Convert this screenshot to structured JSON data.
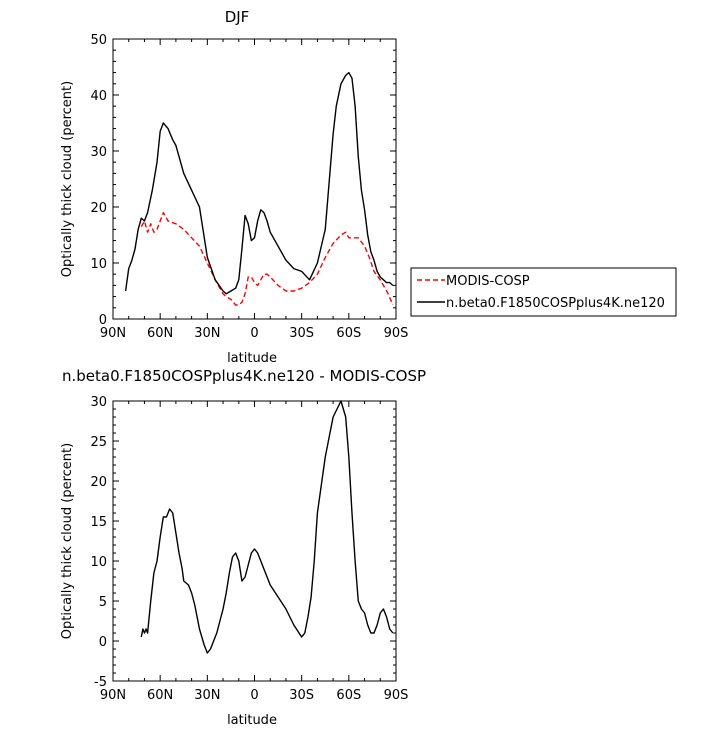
{
  "chart_data": [
    {
      "type": "line",
      "title": "DJF",
      "xlabel": "latitude",
      "ylabel": "Optically thick cloud (percent)",
      "xlim": [
        90,
        -90
      ],
      "ylim": [
        0,
        50
      ],
      "x_ticks": [
        90,
        60,
        30,
        0,
        -30,
        -60,
        -90
      ],
      "x_tick_labels": [
        "90N",
        "60N",
        "30N",
        "0",
        "30S",
        "60S",
        "90S"
      ],
      "y_ticks": [
        0,
        10,
        20,
        30,
        40,
        50
      ],
      "y_tick_labels": [
        "0",
        "10",
        "20",
        "30",
        "40",
        "50"
      ],
      "legend_position": "right",
      "series": [
        {
          "name": "MODIS-COSP",
          "color": "#ff0000",
          "dash": "dashed",
          "x": [
            72,
            70,
            68,
            66,
            64,
            62,
            60,
            58,
            55,
            50,
            45,
            40,
            35,
            30,
            25,
            20,
            18,
            15,
            12,
            10,
            8,
            6,
            4,
            2,
            0,
            -2,
            -4,
            -6,
            -8,
            -10,
            -15,
            -20,
            -25,
            -30,
            -35,
            -40,
            -45,
            -50,
            -55,
            -58,
            -60,
            -63,
            -66,
            -70,
            -73,
            -76,
            -80,
            -85,
            -88
          ],
          "y": [
            16.5,
            17.5,
            15.5,
            17,
            15.5,
            16,
            17.5,
            19,
            17.5,
            17,
            16,
            14.5,
            13,
            10,
            7,
            4.5,
            4,
            3.5,
            2.5,
            2.5,
            3,
            4.5,
            7.5,
            7.5,
            6.5,
            6,
            7,
            8,
            8,
            7.5,
            6,
            5,
            5,
            5.5,
            6.5,
            8,
            11,
            13.5,
            15,
            15.5,
            14.5,
            14.5,
            14.5,
            13,
            11,
            8.5,
            7,
            4.5,
            2.5
          ]
        },
        {
          "name": "n.beta0.F1850COSPplus4K.ne120",
          "color": "#000000",
          "dash": "solid",
          "x": [
            82,
            80,
            78,
            76,
            74,
            72,
            70,
            68,
            65,
            62,
            60,
            58,
            55,
            52,
            50,
            45,
            40,
            35,
            30,
            25,
            20,
            18,
            15,
            12,
            10,
            8,
            6,
            4,
            2,
            0,
            -2,
            -4,
            -6,
            -8,
            -10,
            -15,
            -20,
            -25,
            -30,
            -35,
            -40,
            -45,
            -50,
            -52,
            -55,
            -58,
            -60,
            -62,
            -64,
            -66,
            -68,
            -70,
            -72,
            -74,
            -76,
            -78,
            -80,
            -82,
            -84,
            -86,
            -88
          ],
          "y": [
            5,
            9,
            10.5,
            12.5,
            16,
            18,
            17.5,
            19,
            23,
            28,
            33.5,
            35,
            34,
            32,
            31,
            26,
            23,
            20,
            11,
            7,
            5,
            4.5,
            5,
            5.5,
            7,
            12.5,
            18.5,
            17,
            14,
            14.5,
            17.5,
            19.5,
            19,
            17.5,
            15.5,
            13,
            10.5,
            9,
            8.5,
            7,
            10,
            16,
            33,
            38,
            42,
            43.5,
            44,
            43,
            38,
            29,
            23,
            19.5,
            15,
            12,
            10.5,
            8.5,
            7.5,
            7,
            6.5,
            6.5,
            6
          ]
        }
      ]
    },
    {
      "type": "line",
      "title": "n.beta0.F1850COSPplus4K.ne120 - MODIS-COSP",
      "xlabel": "latitude",
      "ylabel": "Optically thick cloud (percent)",
      "xlim": [
        90,
        -90
      ],
      "ylim": [
        -5,
        30
      ],
      "x_ticks": [
        90,
        60,
        30,
        0,
        -30,
        -60,
        -90
      ],
      "x_tick_labels": [
        "90N",
        "60N",
        "30N",
        "0",
        "30S",
        "60S",
        "90S"
      ],
      "y_ticks": [
        -5,
        0,
        5,
        10,
        15,
        20,
        25,
        30
      ],
      "y_tick_labels": [
        "-5",
        "0",
        "5",
        "10",
        "15",
        "20",
        "25",
        "30"
      ],
      "series": [
        {
          "color": "#000000",
          "dash": "solid",
          "x": [
            72,
            71,
            70,
            69,
            68,
            66,
            64,
            62,
            60,
            58,
            56,
            54,
            52,
            50,
            48,
            46,
            45,
            42,
            40,
            38,
            35,
            32,
            30,
            28,
            26,
            24,
            22,
            20,
            18,
            16,
            14,
            12,
            10,
            8,
            6,
            4,
            2,
            0,
            -2,
            -4,
            -6,
            -8,
            -10,
            -15,
            -20,
            -25,
            -30,
            -32,
            -34,
            -36,
            -38,
            -40,
            -45,
            -50,
            -55,
            -58,
            -60,
            -62,
            -64,
            -66,
            -68,
            -70,
            -72,
            -74,
            -76,
            -78,
            -80,
            -82,
            -84,
            -86,
            -88
          ],
          "y": [
            0.5,
            1.5,
            1,
            1.5,
            1,
            5,
            8.5,
            10,
            13,
            15.5,
            15.5,
            16.5,
            16,
            13.5,
            11,
            9,
            7.5,
            7,
            6,
            4.5,
            1.5,
            -0.5,
            -1.5,
            -1,
            0,
            1,
            2.5,
            4,
            6,
            8.5,
            10.5,
            11,
            10,
            7.5,
            8,
            9.5,
            11,
            11.5,
            11,
            10,
            9,
            8,
            7,
            5.5,
            4,
            2,
            0.5,
            1,
            3,
            5.5,
            10,
            16,
            23,
            28,
            30,
            28,
            23,
            16,
            10,
            5,
            4,
            3.5,
            2,
            1,
            1,
            2,
            3.5,
            4,
            3,
            1.5,
            1
          ]
        }
      ]
    }
  ]
}
